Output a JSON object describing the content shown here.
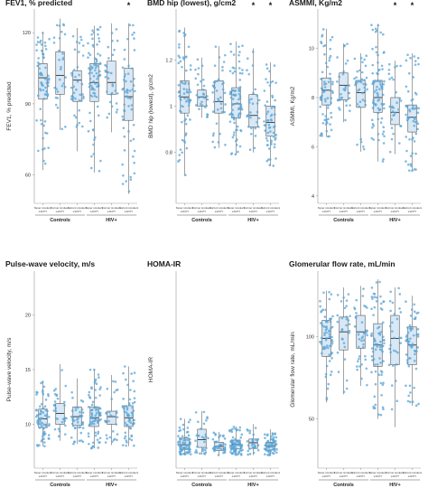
{
  "chart_data": [
    {
      "type": "box",
      "title": "FEV1, % predicted",
      "ylabel": "FEV1, % predicted",
      "ylim": [
        48,
        130
      ],
      "yticks": [
        60,
        90,
        120
      ],
      "categories": [
        "Never smokers",
        "Former smokers",
        "Current smokers",
        "Never smokers",
        "Former smokers",
        "Current smokers"
      ],
      "subcategories": [
        "≥10 PY",
        "≥10 PY",
        "≥10 PY",
        "≥10 PY",
        "≥10 PY",
        "≥10 PY"
      ],
      "groups": [
        {
          "label": "Controls",
          "span": [
            0,
            2
          ]
        },
        {
          "label": "HIV+",
          "span": [
            3,
            5
          ]
        }
      ],
      "significant": [
        false,
        false,
        false,
        false,
        false,
        true
      ],
      "star_symbol": "*",
      "boxes": [
        {
          "min": 62,
          "q1": 92,
          "median": 101,
          "q3": 107,
          "max": 120
        },
        {
          "min": 79,
          "q1": 94,
          "median": 102,
          "q3": 112,
          "max": 126
        },
        {
          "min": 70,
          "q1": 91,
          "median": 100,
          "q3": 104,
          "max": 122
        },
        {
          "min": 61,
          "q1": 91,
          "median": 99,
          "q3": 107,
          "max": 123
        },
        {
          "min": 78,
          "q1": 94,
          "median": 99,
          "q3": 108,
          "max": 124
        },
        {
          "min": 52,
          "q1": 83,
          "median": 93,
          "q3": 105,
          "max": 124
        }
      ],
      "n_points": [
        70,
        30,
        40,
        80,
        30,
        60
      ]
    },
    {
      "type": "box",
      "title": "BMD hip (lowest), g/cm2",
      "ylabel": "BMD hip (lowest), g/cm2",
      "ylim": [
        0.58,
        1.42
      ],
      "yticks": [
        0.8,
        1.0,
        1.2
      ],
      "categories": [
        "Never smokers",
        "Former smokers",
        "Current smokers",
        "Never smokers",
        "Former smokers",
        "Current smokers"
      ],
      "subcategories": [
        "≥10 PY",
        "≥10 PY",
        "≥10 PY",
        "≥10 PY",
        "≥10 PY",
        "≥10 PY"
      ],
      "groups": [
        {
          "label": "Controls",
          "span": [
            0,
            2
          ]
        },
        {
          "label": "HIV+",
          "span": [
            3,
            5
          ]
        }
      ],
      "significant": [
        false,
        false,
        false,
        false,
        true,
        true
      ],
      "star_symbol": "*",
      "boxes": [
        {
          "min": 0.7,
          "q1": 0.97,
          "median": 1.04,
          "q3": 1.11,
          "max": 1.34
        },
        {
          "min": 0.95,
          "q1": 1.0,
          "median": 1.04,
          "q3": 1.07,
          "max": 1.21
        },
        {
          "min": 0.82,
          "q1": 0.97,
          "median": 1.02,
          "q3": 1.11,
          "max": 1.26
        },
        {
          "min": 0.79,
          "q1": 0.95,
          "median": 1.01,
          "q3": 1.08,
          "max": 1.28
        },
        {
          "min": 0.8,
          "q1": 0.91,
          "median": 0.96,
          "q3": 1.05,
          "max": 1.25
        },
        {
          "min": 0.74,
          "q1": 0.87,
          "median": 0.93,
          "q3": 1.0,
          "max": 1.19
        }
      ],
      "n_points": [
        70,
        30,
        40,
        80,
        30,
        60
      ]
    },
    {
      "type": "box",
      "title": "ASMMI, Kg/m2",
      "ylabel": "ASMMI, Kg/m2",
      "ylim": [
        3.7,
        11.6
      ],
      "yticks": [
        4,
        6,
        8,
        10
      ],
      "categories": [
        "Never smokers",
        "Former smokers",
        "Current smokers",
        "Never smokers",
        "Former smokers",
        "Current smokers"
      ],
      "subcategories": [
        "≥10 PY",
        "≥10 PY",
        "≥10 PY",
        "≥10 PY",
        "≥10 PY",
        "≥10 PY"
      ],
      "groups": [
        {
          "label": "Controls",
          "span": [
            0,
            2
          ]
        },
        {
          "label": "HIV+",
          "span": [
            3,
            5
          ]
        }
      ],
      "significant": [
        false,
        false,
        false,
        false,
        true,
        true
      ],
      "star_symbol": "*",
      "boxes": [
        {
          "min": 6.4,
          "q1": 7.7,
          "median": 8.3,
          "q3": 8.8,
          "max": 10.8
        },
        {
          "min": 7.0,
          "q1": 7.9,
          "median": 8.5,
          "q3": 9.0,
          "max": 10.2
        },
        {
          "min": 5.8,
          "q1": 7.6,
          "median": 8.2,
          "q3": 8.7,
          "max": 9.8
        },
        {
          "min": 5.4,
          "q1": 7.4,
          "median": 8.0,
          "q3": 8.7,
          "max": 11.0
        },
        {
          "min": 5.7,
          "q1": 6.9,
          "median": 7.4,
          "q3": 8.0,
          "max": 9.5
        },
        {
          "min": 5.0,
          "q1": 6.6,
          "median": 7.2,
          "q3": 7.7,
          "max": 9.8
        }
      ],
      "n_points": [
        70,
        30,
        40,
        80,
        30,
        60
      ]
    },
    {
      "type": "box",
      "title": "Pulse-wave velocity,  m/s",
      "ylabel": "Pulse-wave velocity,  m/s",
      "ylim": [
        6,
        24
      ],
      "yticks": [
        10,
        15,
        20
      ],
      "categories": [
        "Never smokers",
        "Former smokers",
        "Current smokers",
        "Never smokers",
        "Former smokers",
        "Current smokers"
      ],
      "subcategories": [
        "≥10 PY",
        "≥10 PY",
        "≥10 PY",
        "≥10 PY",
        "≥10 PY",
        "≥10 PY"
      ],
      "groups": [
        {
          "label": "Controls",
          "span": [
            0,
            2
          ]
        },
        {
          "label": "HIV+",
          "span": [
            3,
            5
          ]
        }
      ],
      "significant": [
        false,
        false,
        false,
        false,
        false,
        false
      ],
      "star_symbol": "*",
      "boxes": [
        {
          "min": 8.0,
          "q1": 9.7,
          "median": 10.5,
          "q3": 11.4,
          "max": 14.0
        },
        {
          "min": 8.5,
          "q1": 10.0,
          "median": 11.0,
          "q3": 11.9,
          "max": 15.5
        },
        {
          "min": 8.2,
          "q1": 9.9,
          "median": 10.7,
          "q3": 11.6,
          "max": 14.2
        },
        {
          "min": 7.8,
          "q1": 9.8,
          "median": 10.6,
          "q3": 11.6,
          "max": 15.0
        },
        {
          "min": 8.1,
          "q1": 10.0,
          "median": 10.7,
          "q3": 11.2,
          "max": 14.5
        },
        {
          "min": 8.0,
          "q1": 9.8,
          "median": 10.6,
          "q3": 11.7,
          "max": 15.3
        }
      ],
      "n_points": [
        70,
        30,
        40,
        80,
        30,
        60
      ]
    },
    {
      "type": "box",
      "title": "HOMA-IR",
      "ylabel": "HOMA-IR",
      "ylim": [
        -2,
        36
      ],
      "yticks": [],
      "categories": [
        "Never smokers",
        "Former smokers",
        "Current smokers",
        "Never smokers",
        "Former smokers",
        "Current smokers"
      ],
      "subcategories": [
        "≥10 PY",
        "≥10 PY",
        "≥10 PY",
        "≥10 PY",
        "≥10 PY",
        "≥10 PY"
      ],
      "groups": [
        {
          "label": "Controls",
          "span": [
            0,
            2
          ]
        },
        {
          "label": "HIV+",
          "span": [
            3,
            5
          ]
        }
      ],
      "significant": [
        false,
        false,
        false,
        false,
        false,
        false
      ],
      "star_symbol": "*",
      "boxes": [
        {
          "min": 0.5,
          "q1": 1.6,
          "median": 2.5,
          "q3": 3.8,
          "max": 7.5
        },
        {
          "min": 0.6,
          "q1": 2.0,
          "median": 3.5,
          "q3": 5.5,
          "max": 9.0
        },
        {
          "min": 0.5,
          "q1": 1.4,
          "median": 2.2,
          "q3": 3.0,
          "max": 5.0
        },
        {
          "min": 0.5,
          "q1": 1.7,
          "median": 2.6,
          "q3": 3.4,
          "max": 6.0
        },
        {
          "min": 0.5,
          "q1": 1.8,
          "median": 2.9,
          "q3": 3.6,
          "max": 6.5
        },
        {
          "min": 0.5,
          "q1": 1.5,
          "median": 2.3,
          "q3": 3.0,
          "max": 5.5
        }
      ],
      "n_points": [
        70,
        30,
        40,
        80,
        30,
        60
      ]
    },
    {
      "type": "box",
      "title": "Glomerular flow rate, mL/min",
      "ylabel": "Glomerular flow rate, mL/min",
      "ylim": [
        20,
        140
      ],
      "yticks": [
        50,
        100
      ],
      "categories": [
        "Never smokers",
        "Former smokers",
        "Current smokers",
        "Never smokers",
        "Former smokers",
        "Current smokers"
      ],
      "subcategories": [
        "≥10 PY",
        "≥10 PY",
        "≥10 PY",
        "≥10 PY",
        "≥10 PY",
        "≥10 PY"
      ],
      "groups": [
        {
          "label": "Controls",
          "span": [
            0,
            2
          ]
        },
        {
          "label": "HIV+",
          "span": [
            3,
            5
          ]
        }
      ],
      "significant": [
        false,
        false,
        false,
        false,
        false,
        false
      ],
      "star_symbol": "*",
      "boxes": [
        {
          "min": 60,
          "q1": 88,
          "median": 99,
          "q3": 110,
          "max": 128
        },
        {
          "min": 65,
          "q1": 92,
          "median": 103,
          "q3": 112,
          "max": 130
        },
        {
          "min": 70,
          "q1": 93,
          "median": 103,
          "q3": 113,
          "max": 131
        },
        {
          "min": 50,
          "q1": 82,
          "median": 95,
          "q3": 108,
          "max": 135
        },
        {
          "min": 45,
          "q1": 83,
          "median": 99,
          "q3": 113,
          "max": 130
        },
        {
          "min": 58,
          "q1": 83,
          "median": 95,
          "q3": 106,
          "max": 125
        }
      ],
      "n_points": [
        70,
        30,
        40,
        80,
        30,
        60
      ]
    }
  ]
}
